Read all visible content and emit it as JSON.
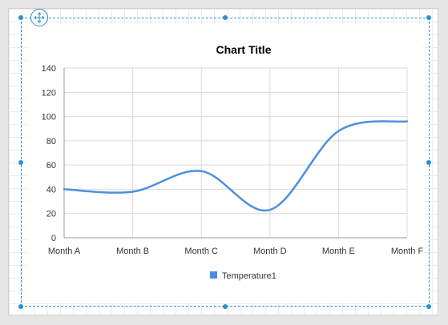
{
  "chart_data": {
    "type": "line",
    "title": "Chart Title",
    "categories": [
      "Month A",
      "Month B",
      "Month C",
      "Month D",
      "Month E",
      "Month F"
    ],
    "series": [
      {
        "name": "Temperature1",
        "values": [
          40,
          38,
          55,
          23,
          88,
          96
        ],
        "color": "#4a90e2"
      }
    ],
    "smooth": true,
    "ylim": [
      0,
      140
    ],
    "yticks": [
      0,
      20,
      40,
      60,
      80,
      100,
      120,
      140
    ],
    "grid": true,
    "legend_position": "bottom-center"
  },
  "designer": {
    "move_handle_icon": "move-arrows-icon",
    "accent_color": "#2a8fd6"
  }
}
